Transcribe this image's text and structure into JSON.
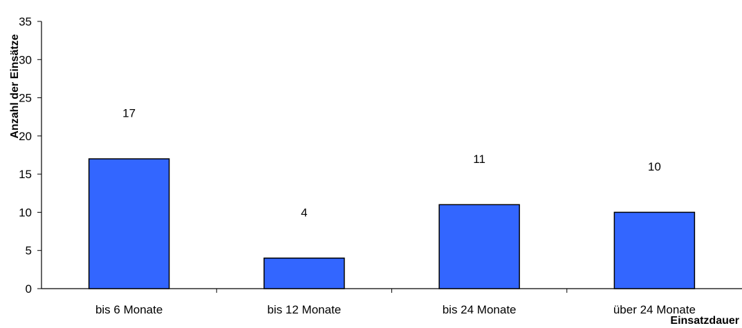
{
  "chart_data": {
    "type": "bar",
    "categories": [
      "bis 6 Monate",
      "bis 12 Monate",
      "bis 24 Monate",
      "über 24 Monate"
    ],
    "values": [
      17,
      4,
      11,
      10
    ],
    "data_labels": [
      "17",
      "4",
      "11",
      "10"
    ],
    "xlabel": "Einsatzdauer",
    "ylabel": "Anzahl der Einsätze",
    "ylim": [
      0,
      35
    ],
    "y_ticks": [
      0,
      5,
      10,
      15,
      20,
      25,
      30,
      35
    ],
    "y_tick_labels": [
      "0",
      "5",
      "10",
      "15",
      "20",
      "25",
      "30",
      "35"
    ],
    "grid": false,
    "legend": "none",
    "colors": {
      "bar_fill": "#3366ff",
      "bar_stroke": "#000000",
      "axis": "#000000"
    }
  }
}
